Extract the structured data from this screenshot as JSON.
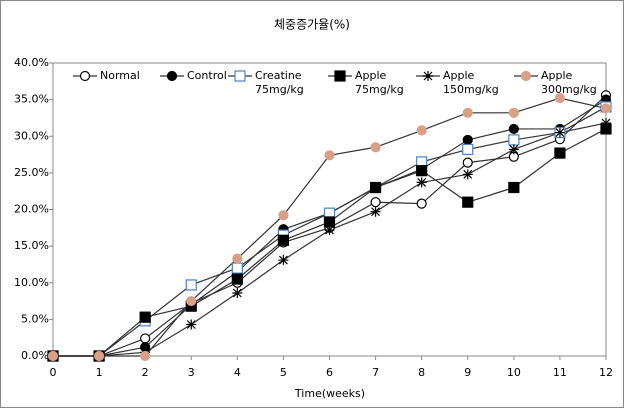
{
  "chart_data": {
    "type": "line",
    "title": "체중증가율(%)",
    "x_label": "Time(weeks)",
    "x": [
      0,
      1,
      2,
      3,
      4,
      5,
      6,
      7,
      8,
      9,
      10,
      11,
      12
    ],
    "xlim": [
      0,
      12
    ],
    "xticks": [
      0,
      1,
      2,
      3,
      4,
      5,
      6,
      7,
      8,
      9,
      10,
      11,
      12
    ],
    "ylim": [
      0,
      40
    ],
    "yticks": [
      {
        "value": 0,
        "label": "0.0%"
      },
      {
        "value": 5,
        "label": "5.0%"
      },
      {
        "value": 10,
        "label": "10.0%"
      },
      {
        "value": 15,
        "label": "15.0%"
      },
      {
        "value": 20,
        "label": "20.0%"
      },
      {
        "value": 25,
        "label": "25.0%"
      },
      {
        "value": 30,
        "label": "30.0%"
      },
      {
        "value": 35,
        "label": "35.0%"
      },
      {
        "value": 40,
        "label": "40.0%"
      }
    ],
    "line_color": "#333333",
    "legend": "top",
    "series": [
      {
        "name": "Normal",
        "color": "#000000",
        "marker": "circle-open",
        "values": [
          0,
          0,
          2.4,
          7.2,
          10,
          15.5,
          17.5,
          21,
          20.8,
          26.4,
          27.2,
          29.6,
          35.6
        ]
      },
      {
        "name": "Control",
        "color": "#000000",
        "marker": "circle-filled",
        "values": [
          0,
          0,
          1.2,
          7,
          11.5,
          17.3,
          19.5,
          23,
          25.5,
          29.5,
          31,
          31,
          35
        ]
      },
      {
        "name": "Creatine 75mg/kg",
        "color": "#4f81bd",
        "marker": "square-open",
        "values": [
          0,
          0,
          4.8,
          9.7,
          12,
          16.5,
          19.5,
          23,
          26.5,
          28.2,
          29.5,
          30.5,
          34
        ]
      },
      {
        "name": "Apple 75mg/kg",
        "color": "#000000",
        "marker": "square-filled",
        "values": [
          0,
          0,
          5.3,
          6.8,
          10.5,
          15.8,
          18.3,
          23,
          25.3,
          21,
          23,
          27.7,
          31
        ]
      },
      {
        "name": "Apple 150mg/kg",
        "color": "#000000",
        "marker": "star",
        "values": [
          0,
          0,
          0.5,
          4.3,
          8.6,
          13.1,
          17.2,
          19.7,
          23.7,
          24.8,
          28.2,
          30.5,
          31.8
        ]
      },
      {
        "name": "Apple 300mg/kg",
        "color": "#d9a087",
        "marker": "circle-filled",
        "values": [
          0,
          0,
          0,
          7.5,
          13.3,
          19.2,
          27.4,
          28.5,
          30.8,
          33.2,
          33.2,
          35.2,
          33.8
        ]
      }
    ]
  }
}
